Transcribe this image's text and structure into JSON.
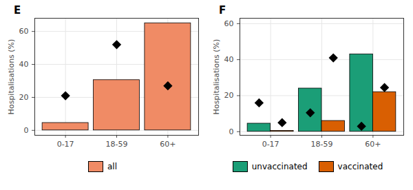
{
  "chart_data": [
    {
      "type": "bar",
      "title": "E",
      "y_label": "Hospitalisations (%)",
      "categories": [
        "0-17",
        "18-59",
        "60+"
      ],
      "series": [
        {
          "name": "all",
          "color": "#F08B65",
          "values": [
            4.5,
            30.5,
            65
          ],
          "points": [
            21,
            52,
            27
          ],
          "marker": "diamond"
        }
      ],
      "ylim": [
        -3,
        68
      ],
      "yticks": [
        0,
        20,
        40,
        60
      ],
      "grid": true,
      "legend": "bottom"
    },
    {
      "type": "bar",
      "title": "F",
      "y_label": "Hospitalisations (%)",
      "categories": [
        "0-17",
        "18-59",
        "60+"
      ],
      "series": [
        {
          "name": "unvaccinated",
          "color": "#1B9E77",
          "values": [
            4.5,
            24,
            43
          ],
          "points": [
            16,
            10.5,
            3
          ],
          "marker": "diamond"
        },
        {
          "name": "vaccinated",
          "color": "#D95F02",
          "values": [
            0.5,
            6,
            22
          ],
          "points": [
            5,
            41,
            24.5
          ],
          "marker": "diamond"
        }
      ],
      "ylim": [
        -2,
        63
      ],
      "yticks": [
        0,
        20,
        40,
        60
      ],
      "grid": true,
      "legend": "bottom"
    }
  ]
}
